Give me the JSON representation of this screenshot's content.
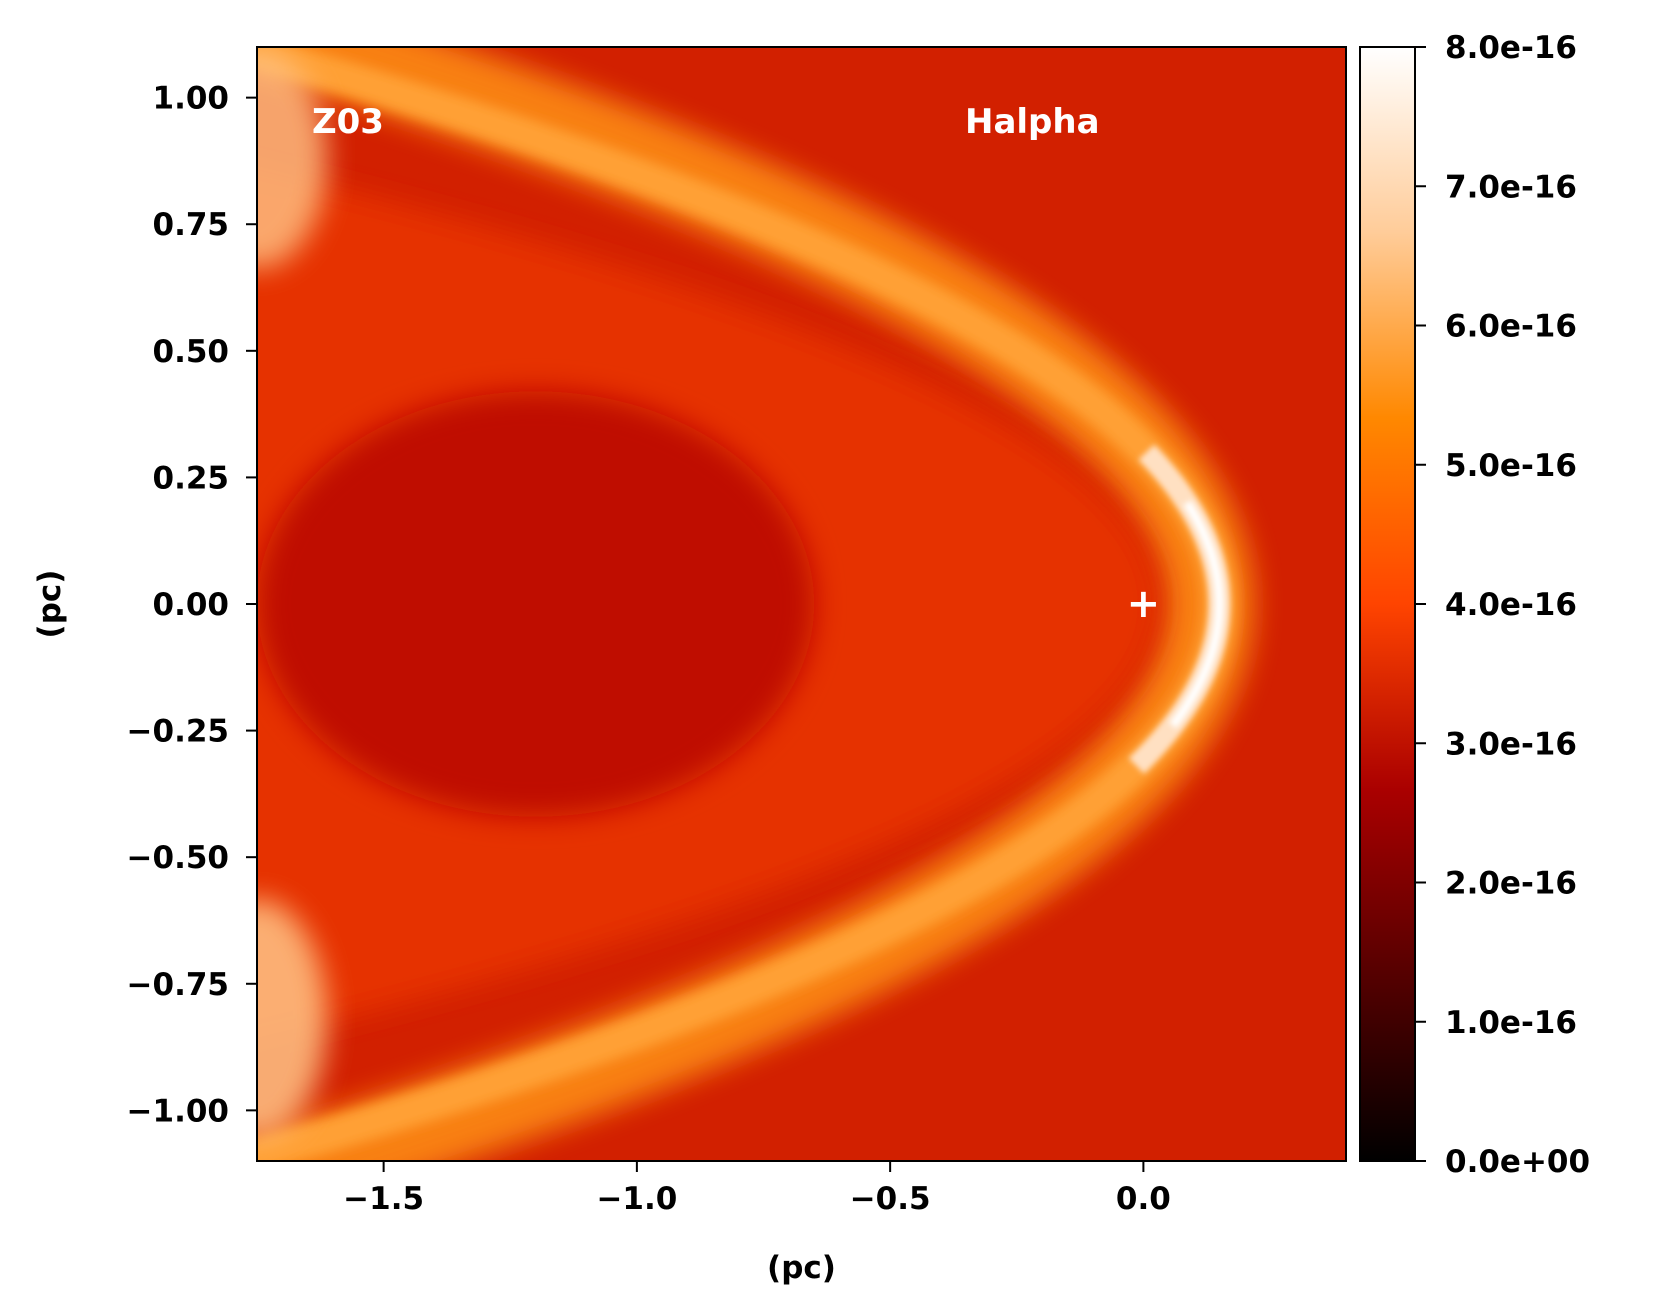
{
  "chart_data": {
    "type": "heatmap",
    "title": "",
    "xlabel": "(pc)",
    "ylabel": "(pc)",
    "xlim": [
      -1.75,
      0.4
    ],
    "ylim": [
      -1.1,
      1.1
    ],
    "xticks": [
      {
        "value": -1.5,
        "label": "−1.5"
      },
      {
        "value": -1.0,
        "label": "−1.0"
      },
      {
        "value": -0.5,
        "label": "−0.5"
      },
      {
        "value": 0.0,
        "label": "0.0"
      }
    ],
    "yticks": [
      {
        "value": 1.0,
        "label": "1.00"
      },
      {
        "value": 0.75,
        "label": "0.75"
      },
      {
        "value": 0.5,
        "label": "0.50"
      },
      {
        "value": 0.25,
        "label": "0.25"
      },
      {
        "value": 0.0,
        "label": "0.00"
      },
      {
        "value": -0.25,
        "label": "−0.25"
      },
      {
        "value": -0.5,
        "label": "−0.50"
      },
      {
        "value": -0.75,
        "label": "−0.75"
      },
      {
        "value": -1.0,
        "label": "−1.00"
      }
    ],
    "colorbar": {
      "range": [
        0,
        8e-16
      ],
      "ticks": [
        {
          "value": 0,
          "label": "0.0e+00"
        },
        {
          "value": 1e-16,
          "label": "1.0e-16"
        },
        {
          "value": 2e-16,
          "label": "2.0e-16"
        },
        {
          "value": 3e-16,
          "label": "3.0e-16"
        },
        {
          "value": 4e-16,
          "label": "4.0e-16"
        },
        {
          "value": 5e-16,
          "label": "5.0e-16"
        },
        {
          "value": 6e-16,
          "label": "6.0e-16"
        },
        {
          "value": 7e-16,
          "label": "7.0e-16"
        },
        {
          "value": 8e-16,
          "label": "8.0e-16"
        }
      ],
      "colormap": [
        "#000000",
        "#550000",
        "#aa0000",
        "#ff4400",
        "#ff8800",
        "#ffcc99",
        "#ffffff"
      ]
    },
    "annotations": [
      {
        "text": "Z03",
        "color": "#ffffff"
      },
      {
        "text": "Halpha",
        "color": "#ffffff"
      }
    ],
    "marker": {
      "symbol": "+",
      "x": 0.0,
      "y": 0.0,
      "color": "#ffffff"
    },
    "field": {
      "background_level": 3.3e-16,
      "peak_level": 8e-16,
      "bow_apex_x": 0.15,
      "bow_axis_y": 0.0,
      "description_levels": {
        "inner_cavity": 3e-16,
        "shell_apex": 8e-16,
        "shell_wings": 5.5e-16,
        "far_wing_edge": 6.5e-16
      }
    }
  }
}
